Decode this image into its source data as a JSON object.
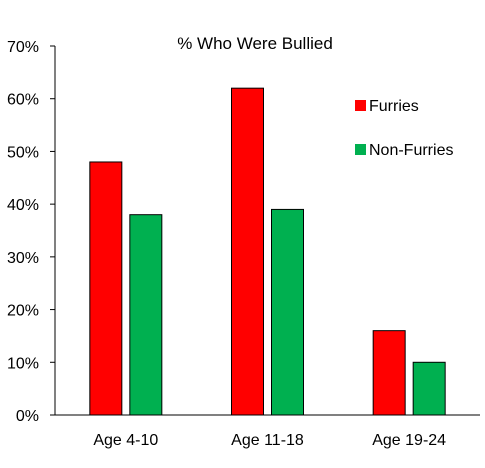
{
  "chart_data": {
    "type": "bar",
    "title": "% Who Were Bullied",
    "xlabel": "",
    "ylabel": "",
    "categories": [
      "Age 4-10",
      "Age 11-18",
      "Age 19-24"
    ],
    "series": [
      {
        "name": "Furries",
        "color": "#ff0000",
        "values": [
          48,
          62,
          16
        ]
      },
      {
        "name": "Non-Furries",
        "color": "#00b050",
        "values": [
          38,
          39,
          10
        ]
      }
    ],
    "ylim": [
      0,
      70
    ],
    "yticks": [
      0,
      10,
      20,
      30,
      40,
      50,
      60,
      70
    ],
    "ytick_labels": [
      "0%",
      "10%",
      "20%",
      "30%",
      "40%",
      "50%",
      "60%",
      "70%"
    ],
    "grid": false,
    "legend_position": "top-right"
  }
}
